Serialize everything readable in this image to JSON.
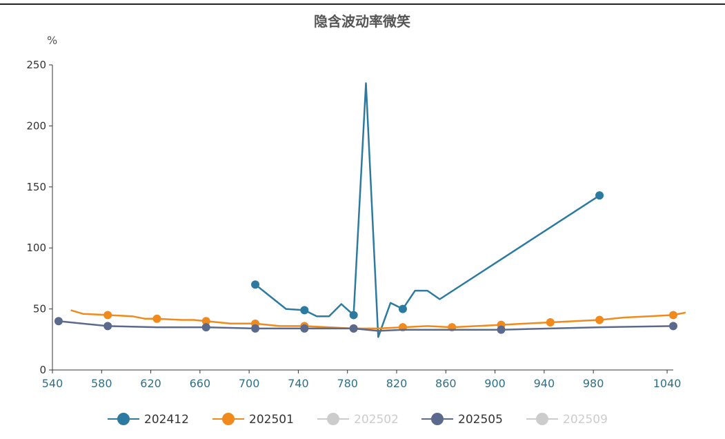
{
  "chart_data": {
    "type": "line",
    "title": "隐含波动率微笑",
    "ylabel": "%",
    "xlabel": "",
    "xlim": [
      540,
      1045
    ],
    "ylim": [
      0,
      250
    ],
    "xticks": [
      540,
      580,
      620,
      660,
      700,
      740,
      780,
      820,
      860,
      900,
      940,
      980,
      1040
    ],
    "yticks": [
      0,
      50,
      100,
      150,
      200,
      250
    ],
    "grid": false,
    "legend_position": "bottom",
    "series": [
      {
        "name": "202412",
        "color": "#2c7aa0",
        "visible": true,
        "points": [
          [
            705,
            70
          ],
          [
            730,
            50
          ],
          [
            745,
            49
          ],
          [
            755,
            44
          ],
          [
            765,
            44
          ],
          [
            775,
            54
          ],
          [
            785,
            45
          ],
          [
            795,
            235
          ],
          [
            805,
            27
          ],
          [
            815,
            55
          ],
          [
            825,
            50
          ],
          [
            835,
            65
          ],
          [
            845,
            65
          ],
          [
            855,
            58
          ],
          [
            985,
            143
          ]
        ],
        "markers": [
          [
            705,
            70
          ],
          [
            745,
            49
          ],
          [
            785,
            45
          ],
          [
            825,
            50
          ],
          [
            985,
            143
          ]
        ]
      },
      {
        "name": "202501",
        "color": "#f08a1c",
        "visible": true,
        "points": [
          [
            555,
            49
          ],
          [
            565,
            46
          ],
          [
            585,
            45
          ],
          [
            605,
            44
          ],
          [
            615,
            42
          ],
          [
            625,
            42
          ],
          [
            645,
            41
          ],
          [
            655,
            41
          ],
          [
            665,
            40
          ],
          [
            685,
            38
          ],
          [
            705,
            38
          ],
          [
            725,
            36
          ],
          [
            745,
            36
          ],
          [
            765,
            35
          ],
          [
            785,
            34
          ],
          [
            795,
            34
          ],
          [
            805,
            34
          ],
          [
            825,
            35
          ],
          [
            845,
            36
          ],
          [
            865,
            35
          ],
          [
            885,
            36
          ],
          [
            905,
            37
          ],
          [
            925,
            38
          ],
          [
            945,
            39
          ],
          [
            965,
            40
          ],
          [
            985,
            41
          ],
          [
            1005,
            43
          ],
          [
            1025,
            44
          ],
          [
            1045,
            45
          ],
          [
            1055,
            47
          ]
        ],
        "markers": [
          [
            585,
            45
          ],
          [
            625,
            42
          ],
          [
            665,
            40
          ],
          [
            705,
            38
          ],
          [
            745,
            36
          ],
          [
            785,
            34
          ],
          [
            825,
            35
          ],
          [
            865,
            35
          ],
          [
            905,
            37
          ],
          [
            945,
            39
          ],
          [
            985,
            41
          ],
          [
            1045,
            45
          ]
        ]
      },
      {
        "name": "202502",
        "color": "#cccccc",
        "visible": false,
        "points": [],
        "markers": []
      },
      {
        "name": "202505",
        "color": "#5b6a8c",
        "visible": true,
        "points": [
          [
            545,
            40
          ],
          [
            585,
            36
          ],
          [
            625,
            35
          ],
          [
            665,
            35
          ],
          [
            705,
            34
          ],
          [
            745,
            34
          ],
          [
            785,
            34
          ],
          [
            805,
            32
          ],
          [
            825,
            33
          ],
          [
            865,
            33
          ],
          [
            905,
            33
          ],
          [
            945,
            34
          ],
          [
            985,
            35
          ],
          [
            1045,
            36
          ]
        ],
        "markers": [
          [
            545,
            40
          ],
          [
            585,
            36
          ],
          [
            665,
            35
          ],
          [
            705,
            34
          ],
          [
            745,
            34
          ],
          [
            785,
            34
          ],
          [
            905,
            33
          ],
          [
            1045,
            36
          ]
        ]
      },
      {
        "name": "202509",
        "color": "#cccccc",
        "visible": false,
        "points": [],
        "markers": []
      }
    ]
  }
}
